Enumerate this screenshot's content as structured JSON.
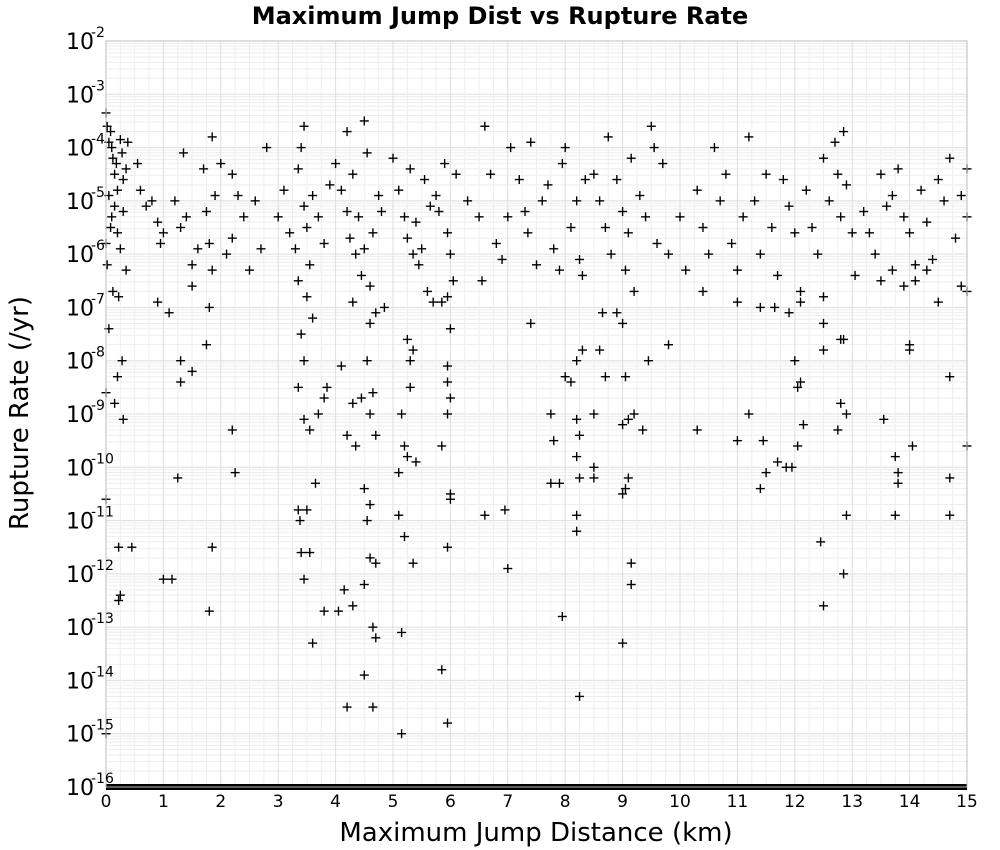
{
  "chart_data": {
    "type": "scatter",
    "title": "Maximum Jump Dist vs Rupture Rate",
    "xlabel": "Maximum Jump Distance (km)",
    "ylabel": "Rupture Rate (/yr)",
    "xlim": [
      0,
      15
    ],
    "ylim": [
      1e-16,
      0.01
    ],
    "yscale": "log",
    "grid": true,
    "marker": "plus",
    "marker_color": "#000000",
    "x_ticks": [
      "0",
      "1",
      "2",
      "3",
      "4",
      "5",
      "6",
      "7",
      "8",
      "9",
      "10",
      "11",
      "12",
      "13",
      "14",
      "15"
    ],
    "y_ticks": [
      {
        "base": "10",
        "exp": "-2"
      },
      {
        "base": "10",
        "exp": "-3"
      },
      {
        "base": "10",
        "exp": "-4"
      },
      {
        "base": "10",
        "exp": "-5"
      },
      {
        "base": "10",
        "exp": "-6"
      },
      {
        "base": "10",
        "exp": "-7"
      },
      {
        "base": "10",
        "exp": "-8"
      },
      {
        "base": "10",
        "exp": "-9"
      },
      {
        "base": "10",
        "exp": "-10"
      },
      {
        "base": "10",
        "exp": "-11"
      },
      {
        "base": "10",
        "exp": "-12"
      },
      {
        "base": "10",
        "exp": "-13"
      },
      {
        "base": "10",
        "exp": "-14"
      },
      {
        "base": "10",
        "exp": "-15"
      },
      {
        "base": "10",
        "exp": "-16"
      }
    ],
    "points_log10": [
      [
        0.0,
        -3.35
      ],
      [
        0.02,
        -3.6
      ],
      [
        0.05,
        -3.9
      ],
      [
        0.08,
        -3.7
      ],
      [
        0.1,
        -4.0
      ],
      [
        0.12,
        -4.2
      ],
      [
        0.15,
        -4.5
      ],
      [
        0.18,
        -4.3
      ],
      [
        0.2,
        -4.8
      ],
      [
        0.25,
        -3.85
      ],
      [
        0.28,
        -4.1
      ],
      [
        0.3,
        -4.6
      ],
      [
        0.35,
        -4.4
      ],
      [
        0.38,
        -3.9
      ],
      [
        0.05,
        -4.9
      ],
      [
        0.1,
        -5.3
      ],
      [
        0.15,
        -5.1
      ],
      [
        0.2,
        -5.6
      ],
      [
        0.25,
        -5.9
      ],
      [
        0.3,
        -5.2
      ],
      [
        0.35,
        -6.3
      ],
      [
        0.02,
        -6.2
      ],
      [
        0.0,
        -5.8
      ],
      [
        0.08,
        -5.5
      ],
      [
        0.12,
        -6.7
      ],
      [
        0.22,
        -6.8
      ],
      [
        0.05,
        -7.4
      ],
      [
        0.2,
        -8.3
      ],
      [
        0.28,
        -8.0
      ],
      [
        0.15,
        -8.8
      ],
      [
        0.3,
        -9.1
      ],
      [
        0.0,
        -8.6
      ],
      [
        0.0,
        -10.6
      ],
      [
        0.22,
        -11.5
      ],
      [
        0.45,
        -11.5
      ],
      [
        0.22,
        -12.5
      ],
      [
        0.25,
        -12.4
      ],
      [
        0.0,
        -15.0
      ],
      [
        0.55,
        -4.3
      ],
      [
        0.6,
        -4.8
      ],
      [
        0.7,
        -5.1
      ],
      [
        0.8,
        -5.0
      ],
      [
        0.9,
        -5.4
      ],
      [
        0.95,
        -5.8
      ],
      [
        0.9,
        -6.9
      ],
      [
        1.1,
        -7.1
      ],
      [
        1.0,
        -5.6
      ],
      [
        1.2,
        -5.0
      ],
      [
        1.3,
        -5.5
      ],
      [
        1.35,
        -4.1
      ],
      [
        1.4,
        -5.3
      ],
      [
        1.5,
        -6.2
      ],
      [
        1.5,
        -6.6
      ],
      [
        1.6,
        -5.9
      ],
      [
        1.7,
        -4.4
      ],
      [
        1.75,
        -5.2
      ],
      [
        1.8,
        -5.8
      ],
      [
        1.85,
        -6.3
      ],
      [
        1.9,
        -4.9
      ],
      [
        1.85,
        -3.8
      ],
      [
        1.8,
        -7.0
      ],
      [
        1.3,
        -8.0
      ],
      [
        1.3,
        -8.4
      ],
      [
        1.5,
        -8.2
      ],
      [
        1.75,
        -7.7
      ],
      [
        1.25,
        -10.2
      ],
      [
        1.0,
        -12.1
      ],
      [
        1.15,
        -12.1
      ],
      [
        1.85,
        -11.5
      ],
      [
        1.8,
        -12.7
      ],
      [
        2.0,
        -4.3
      ],
      [
        2.2,
        -4.5
      ],
      [
        2.3,
        -4.9
      ],
      [
        2.4,
        -5.3
      ],
      [
        2.6,
        -5.0
      ],
      [
        2.8,
        -4.0
      ],
      [
        2.7,
        -5.9
      ],
      [
        2.5,
        -6.3
      ],
      [
        2.2,
        -5.7
      ],
      [
        2.1,
        -6.0
      ],
      [
        2.2,
        -9.3
      ],
      [
        2.25,
        -10.1
      ],
      [
        3.0,
        -5.3
      ],
      [
        3.1,
        -4.8
      ],
      [
        3.2,
        -5.6
      ],
      [
        3.3,
        -5.9
      ],
      [
        3.35,
        -4.4
      ],
      [
        3.4,
        -4.0
      ],
      [
        3.45,
        -5.1
      ],
      [
        3.5,
        -5.5
      ],
      [
        3.55,
        -6.2
      ],
      [
        3.6,
        -4.9
      ],
      [
        3.7,
        -5.3
      ],
      [
        3.8,
        -5.8
      ],
      [
        3.9,
        -4.7
      ],
      [
        3.45,
        -3.6
      ],
      [
        3.35,
        -6.5
      ],
      [
        3.5,
        -6.8
      ],
      [
        3.6,
        -7.2
      ],
      [
        3.4,
        -7.5
      ],
      [
        3.45,
        -8.0
      ],
      [
        3.35,
        -8.5
      ],
      [
        3.45,
        -9.1
      ],
      [
        3.55,
        -9.3
      ],
      [
        3.65,
        -10.3
      ],
      [
        3.5,
        -10.8
      ],
      [
        3.4,
        -11.6
      ],
      [
        3.45,
        -12.1
      ],
      [
        3.55,
        -11.6
      ],
      [
        3.6,
        -13.3
      ],
      [
        3.8,
        -12.7
      ],
      [
        3.8,
        -8.7
      ],
      [
        3.7,
        -9.0
      ],
      [
        3.85,
        -8.5
      ],
      [
        3.35,
        -10.8
      ],
      [
        3.38,
        -11.0
      ],
      [
        4.0,
        -4.3
      ],
      [
        4.1,
        -4.8
      ],
      [
        4.2,
        -5.2
      ],
      [
        4.25,
        -5.7
      ],
      [
        4.3,
        -4.5
      ],
      [
        4.35,
        -6.0
      ],
      [
        4.4,
        -5.3
      ],
      [
        4.45,
        -6.4
      ],
      [
        4.5,
        -5.9
      ],
      [
        4.55,
        -4.1
      ],
      [
        4.6,
        -6.6
      ],
      [
        4.65,
        -5.6
      ],
      [
        4.7,
        -7.1
      ],
      [
        4.75,
        -4.9
      ],
      [
        4.8,
        -5.2
      ],
      [
        4.5,
        -3.5
      ],
      [
        4.2,
        -3.7
      ],
      [
        4.3,
        -6.9
      ],
      [
        4.6,
        -7.3
      ],
      [
        4.55,
        -8.0
      ],
      [
        4.1,
        -8.1
      ],
      [
        4.3,
        -8.8
      ],
      [
        4.45,
        -8.7
      ],
      [
        4.6,
        -9.0
      ],
      [
        4.65,
        -8.6
      ],
      [
        4.7,
        -9.4
      ],
      [
        4.2,
        -9.4
      ],
      [
        4.35,
        -9.6
      ],
      [
        4.5,
        -10.4
      ],
      [
        4.6,
        -10.7
      ],
      [
        4.55,
        -11.0
      ],
      [
        4.6,
        -11.7
      ],
      [
        4.7,
        -11.8
      ],
      [
        4.5,
        -12.2
      ],
      [
        4.3,
        -12.6
      ],
      [
        4.65,
        -13.0
      ],
      [
        4.7,
        -13.2
      ],
      [
        4.05,
        -12.7
      ],
      [
        4.15,
        -12.3
      ],
      [
        4.5,
        -13.9
      ],
      [
        4.2,
        -14.5
      ],
      [
        4.65,
        -14.5
      ],
      [
        4.85,
        -7.0
      ],
      [
        5.0,
        -4.2
      ],
      [
        5.1,
        -4.8
      ],
      [
        5.2,
        -5.3
      ],
      [
        5.25,
        -5.7
      ],
      [
        5.3,
        -4.4
      ],
      [
        5.35,
        -6.0
      ],
      [
        5.4,
        -5.4
      ],
      [
        5.45,
        -6.2
      ],
      [
        5.5,
        -5.9
      ],
      [
        5.55,
        -4.6
      ],
      [
        5.6,
        -6.7
      ],
      [
        5.65,
        -5.1
      ],
      [
        5.7,
        -6.9
      ],
      [
        5.75,
        -4.9
      ],
      [
        5.8,
        -5.2
      ],
      [
        5.9,
        -4.3
      ],
      [
        5.95,
        -5.6
      ],
      [
        6.0,
        -6.0
      ],
      [
        6.05,
        -6.5
      ],
      [
        5.85,
        -6.9
      ],
      [
        5.95,
        -6.8
      ],
      [
        6.0,
        -7.4
      ],
      [
        5.25,
        -7.6
      ],
      [
        5.3,
        -8.0
      ],
      [
        5.35,
        -7.8
      ],
      [
        5.3,
        -8.5
      ],
      [
        5.15,
        -9.0
      ],
      [
        5.2,
        -9.6
      ],
      [
        5.25,
        -9.8
      ],
      [
        5.1,
        -10.1
      ],
      [
        5.4,
        -9.9
      ],
      [
        5.95,
        -8.4
      ],
      [
        6.0,
        -8.7
      ],
      [
        5.95,
        -8.1
      ],
      [
        5.95,
        -9.0
      ],
      [
        5.85,
        -9.6
      ],
      [
        6.0,
        -10.5
      ],
      [
        6.0,
        -10.6
      ],
      [
        5.2,
        -11.3
      ],
      [
        5.1,
        -10.9
      ],
      [
        5.35,
        -11.8
      ],
      [
        5.15,
        -13.1
      ],
      [
        5.95,
        -11.5
      ],
      [
        5.85,
        -13.8
      ],
      [
        5.95,
        -14.8
      ],
      [
        5.15,
        -15.0
      ],
      [
        6.1,
        -4.5
      ],
      [
        6.3,
        -5.0
      ],
      [
        6.5,
        -5.3
      ],
      [
        6.6,
        -3.6
      ],
      [
        6.7,
        -4.5
      ],
      [
        6.8,
        -5.8
      ],
      [
        6.9,
        -6.1
      ],
      [
        7.0,
        -5.3
      ],
      [
        7.05,
        -4.0
      ],
      [
        6.55,
        -6.5
      ],
      [
        6.6,
        -10.9
      ],
      [
        6.95,
        -10.8
      ],
      [
        7.0,
        -11.9
      ],
      [
        7.4,
        -7.3
      ],
      [
        7.2,
        -4.6
      ],
      [
        7.3,
        -5.2
      ],
      [
        7.35,
        -5.6
      ],
      [
        7.4,
        -3.9
      ],
      [
        7.5,
        -6.2
      ],
      [
        7.6,
        -5.0
      ],
      [
        7.7,
        -4.7
      ],
      [
        7.8,
        -5.9
      ],
      [
        7.9,
        -6.3
      ],
      [
        7.95,
        -4.3
      ],
      [
        8.0,
        -4.0
      ],
      [
        8.1,
        -5.5
      ],
      [
        8.2,
        -5.0
      ],
      [
        8.25,
        -6.1
      ],
      [
        8.3,
        -6.4
      ],
      [
        8.35,
        -4.6
      ],
      [
        7.75,
        -9.0
      ],
      [
        7.8,
        -9.5
      ],
      [
        8.2,
        -9.1
      ],
      [
        8.25,
        -9.4
      ],
      [
        8.0,
        -8.3
      ],
      [
        8.1,
        -8.4
      ],
      [
        8.2,
        -8.0
      ],
      [
        8.3,
        -7.8
      ],
      [
        8.2,
        -9.8
      ],
      [
        8.25,
        -10.2
      ],
      [
        7.75,
        -10.3
      ],
      [
        7.9,
        -10.3
      ],
      [
        8.2,
        -10.9
      ],
      [
        8.2,
        -11.2
      ],
      [
        7.95,
        -12.8
      ],
      [
        8.25,
        -14.3
      ],
      [
        8.5,
        -4.5
      ],
      [
        8.6,
        -5.0
      ],
      [
        8.7,
        -5.5
      ],
      [
        8.75,
        -3.8
      ],
      [
        8.8,
        -6.0
      ],
      [
        8.9,
        -4.6
      ],
      [
        9.0,
        -5.2
      ],
      [
        9.05,
        -6.3
      ],
      [
        9.1,
        -5.6
      ],
      [
        9.15,
        -4.2
      ],
      [
        9.2,
        -6.7
      ],
      [
        9.3,
        -4.9
      ],
      [
        9.4,
        -5.3
      ],
      [
        9.5,
        -3.6
      ],
      [
        9.55,
        -4.0
      ],
      [
        9.6,
        -5.8
      ],
      [
        9.7,
        -4.3
      ],
      [
        9.8,
        -6.0
      ],
      [
        8.65,
        -7.1
      ],
      [
        8.7,
        -8.3
      ],
      [
        8.6,
        -7.8
      ],
      [
        8.9,
        -7.1
      ],
      [
        9.0,
        -7.3
      ],
      [
        9.05,
        -8.3
      ],
      [
        9.1,
        -9.1
      ],
      [
        9.2,
        -9.0
      ],
      [
        9.35,
        -9.3
      ],
      [
        9.45,
        -8.0
      ],
      [
        9.8,
        -7.7
      ],
      [
        8.5,
        -9.0
      ],
      [
        8.5,
        -10.0
      ],
      [
        8.5,
        -10.2
      ],
      [
        9.0,
        -10.5
      ],
      [
        9.05,
        -10.4
      ],
      [
        9.1,
        -10.2
      ],
      [
        9.15,
        -11.8
      ],
      [
        9.15,
        -12.2
      ],
      [
        9.0,
        -13.3
      ],
      [
        9.0,
        -9.2
      ],
      [
        10.0,
        -5.3
      ],
      [
        10.1,
        -6.3
      ],
      [
        10.3,
        -4.8
      ],
      [
        10.4,
        -5.5
      ],
      [
        10.5,
        -6.0
      ],
      [
        10.6,
        -4.0
      ],
      [
        10.7,
        -5.0
      ],
      [
        10.8,
        -4.5
      ],
      [
        10.9,
        -5.8
      ],
      [
        11.0,
        -6.3
      ],
      [
        11.1,
        -5.3
      ],
      [
        11.2,
        -3.8
      ],
      [
        11.3,
        -5.0
      ],
      [
        11.4,
        -6.0
      ],
      [
        11.5,
        -4.5
      ],
      [
        11.6,
        -5.5
      ],
      [
        11.7,
        -6.4
      ],
      [
        11.8,
        -4.6
      ],
      [
        11.9,
        -5.1
      ],
      [
        12.0,
        -5.6
      ],
      [
        12.1,
        -6.7
      ],
      [
        11.0,
        -6.9
      ],
      [
        10.4,
        -6.7
      ],
      [
        11.4,
        -7.0
      ],
      [
        11.65,
        -7.0
      ],
      [
        11.9,
        -7.1
      ],
      [
        12.1,
        -6.9
      ],
      [
        10.3,
        -9.3
      ],
      [
        11.0,
        -9.5
      ],
      [
        11.2,
        -9.0
      ],
      [
        11.45,
        -9.5
      ],
      [
        11.7,
        -9.9
      ],
      [
        11.85,
        -10.0
      ],
      [
        11.95,
        -10.0
      ],
      [
        12.05,
        -9.6
      ],
      [
        11.5,
        -10.1
      ],
      [
        11.4,
        -10.4
      ],
      [
        12.0,
        -8.0
      ],
      [
        12.05,
        -8.5
      ],
      [
        12.1,
        -8.4
      ],
      [
        12.15,
        -9.2
      ],
      [
        12.2,
        -4.8
      ],
      [
        12.3,
        -5.5
      ],
      [
        12.4,
        -6.0
      ],
      [
        12.5,
        -4.2
      ],
      [
        12.6,
        -5.0
      ],
      [
        12.7,
        -3.9
      ],
      [
        12.75,
        -4.5
      ],
      [
        12.8,
        -5.3
      ],
      [
        12.85,
        -3.7
      ],
      [
        12.9,
        -4.7
      ],
      [
        13.0,
        -5.6
      ],
      [
        13.05,
        -6.4
      ],
      [
        12.5,
        -6.8
      ],
      [
        12.5,
        -7.3
      ],
      [
        12.5,
        -7.8
      ],
      [
        12.8,
        -7.6
      ],
      [
        12.85,
        -7.6
      ],
      [
        12.8,
        -8.8
      ],
      [
        12.9,
        -9.0
      ],
      [
        12.75,
        -9.3
      ],
      [
        12.45,
        -11.4
      ],
      [
        12.5,
        -12.6
      ],
      [
        12.85,
        -12.0
      ],
      [
        12.9,
        -10.9
      ],
      [
        13.2,
        -5.2
      ],
      [
        13.3,
        -5.6
      ],
      [
        13.4,
        -6.0
      ],
      [
        13.5,
        -4.5
      ],
      [
        13.6,
        -5.1
      ],
      [
        13.7,
        -4.9
      ],
      [
        13.8,
        -4.4
      ],
      [
        13.9,
        -5.3
      ],
      [
        14.0,
        -5.6
      ],
      [
        14.1,
        -6.2
      ],
      [
        14.2,
        -4.8
      ],
      [
        14.3,
        -5.4
      ],
      [
        14.4,
        -6.1
      ],
      [
        14.5,
        -4.6
      ],
      [
        14.6,
        -5.0
      ],
      [
        14.7,
        -4.2
      ],
      [
        14.8,
        -5.7
      ],
      [
        14.9,
        -4.9
      ],
      [
        15.0,
        -4.4
      ],
      [
        15.0,
        -5.3
      ],
      [
        13.5,
        -6.5
      ],
      [
        13.7,
        -6.3
      ],
      [
        13.9,
        -6.6
      ],
      [
        14.1,
        -6.5
      ],
      [
        14.3,
        -6.3
      ],
      [
        14.5,
        -6.9
      ],
      [
        14.9,
        -6.6
      ],
      [
        15.0,
        -6.7
      ],
      [
        14.0,
        -7.7
      ],
      [
        14.0,
        -7.8
      ],
      [
        14.7,
        -8.3
      ],
      [
        13.55,
        -9.1
      ],
      [
        14.05,
        -9.6
      ],
      [
        13.75,
        -9.8
      ],
      [
        13.8,
        -10.1
      ],
      [
        13.8,
        -10.3
      ],
      [
        14.7,
        -10.2
      ],
      [
        14.7,
        -10.9
      ],
      [
        13.75,
        -10.9
      ],
      [
        15.0,
        -9.6
      ]
    ],
    "floor_log10": -16
  }
}
